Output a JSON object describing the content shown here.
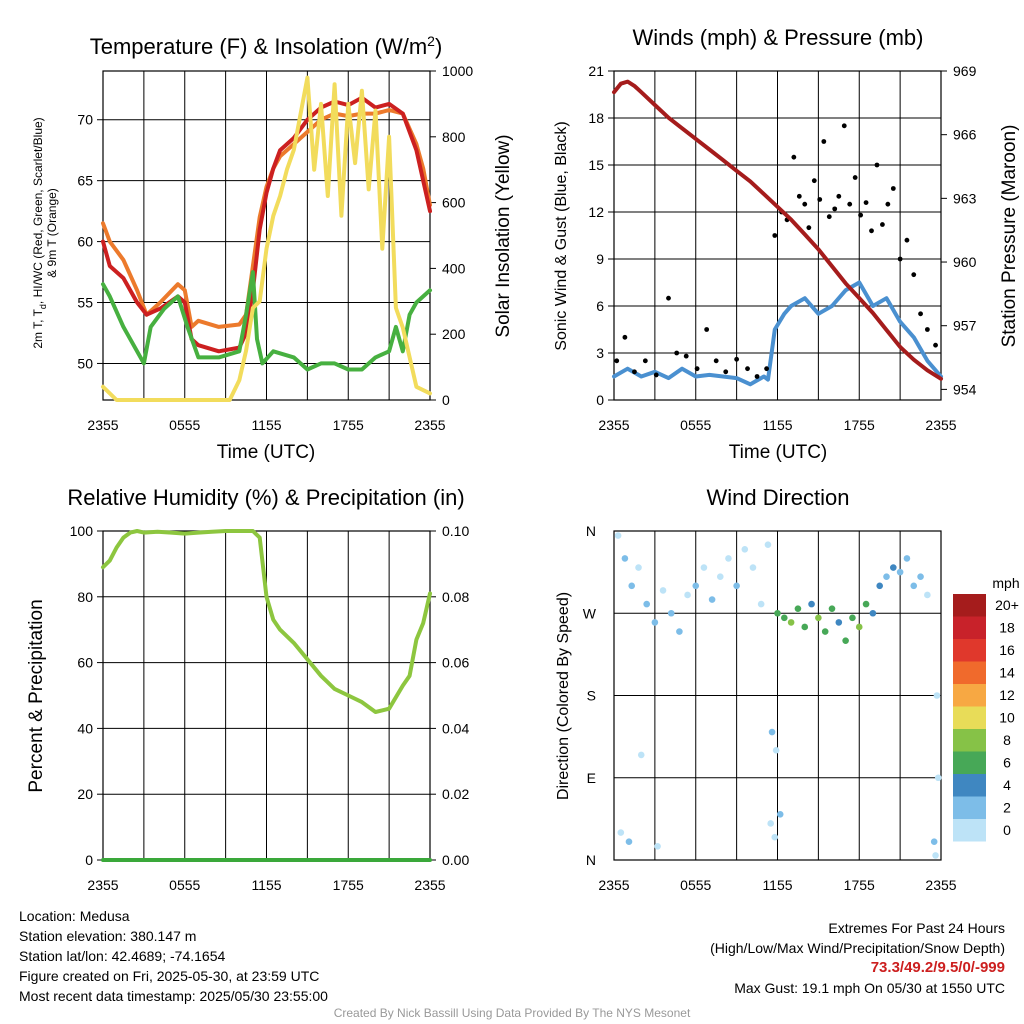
{
  "panels": {
    "temperature": {
      "title": "Temperature (F) & Insolation (W/m",
      "title_sup": "2",
      "title_close": ")",
      "ylabel_left_1": "2m T, T",
      "ylabel_left_sub": "d",
      "ylabel_left_2": ", HI/WC (Red, Green, Scarlet/Blue)",
      "ylabel_left_3": "& 9m T (Orange)",
      "ylabel_right": "Solar Insolation (Yellow)",
      "xlabel": "Time (UTC)"
    },
    "winds": {
      "title": "Winds (mph) & Pressure (mb)",
      "ylabel_left": "Sonic Wind & Gust (Blue, Black)",
      "ylabel_right": "Station Pressure (Maroon)",
      "xlabel": "Time (UTC)"
    },
    "humidity": {
      "title": "Relative Humidity (%) & Precipitation (in)",
      "ylabel_left": "Percent & Precipitation"
    },
    "direction": {
      "title": "Wind Direction",
      "ylabel_left": "Direction (Colored By Speed)",
      "legend_title": "mph",
      "legend_labels": [
        "20+",
        "18",
        "16",
        "14",
        "12",
        "10",
        "8",
        "6",
        "4",
        "2",
        "0"
      ],
      "legend_colors": [
        "#a51c1c",
        "#c8222a",
        "#e0382c",
        "#f06a2c",
        "#f7a843",
        "#e8dc58",
        "#86c247",
        "#47a857",
        "#3f87c1",
        "#7dbde8",
        "#bde3f7"
      ]
    }
  },
  "chart_data": [
    {
      "type": "line",
      "panel": "temperature",
      "x_ticks": [
        "2355",
        "0555",
        "1155",
        "1755",
        "2355"
      ],
      "x_range_hours": [
        0,
        24
      ],
      "ylim_left": [
        47,
        74
      ],
      "yticks_left": [
        50,
        55,
        60,
        65,
        70
      ],
      "ylim_right": [
        0,
        1000
      ],
      "yticks_right": [
        0,
        200,
        400,
        600,
        800,
        1000
      ],
      "series": [
        {
          "axis": "left",
          "color": "#ec7a2c",
          "x": [
            0,
            0.5,
            1.5,
            2.5,
            3.2,
            4.2,
            5.5,
            6,
            6.5,
            7,
            8.5,
            10,
            10.5,
            11,
            11.5,
            12,
            12.5,
            13,
            14,
            15,
            16,
            17,
            18,
            19,
            20,
            21,
            22,
            23,
            23.5,
            24
          ],
          "y": [
            61.5,
            60,
            58.5,
            56,
            54,
            55,
            56.5,
            56,
            53,
            53.5,
            53,
            53.2,
            54,
            58,
            62,
            64.5,
            66,
            67,
            68,
            69,
            70,
            70.5,
            70.3,
            70.5,
            70.5,
            70.8,
            70.5,
            68,
            66,
            63
          ]
        },
        {
          "axis": "left",
          "color": "#cc2020",
          "x": [
            0,
            0.5,
            1.5,
            2.5,
            3.2,
            4.2,
            5.5,
            6,
            6.5,
            7,
            8.5,
            10,
            10.5,
            11,
            11.5,
            12,
            12.5,
            13,
            14,
            15,
            16,
            17,
            18,
            19,
            20,
            21,
            22,
            23,
            23.5,
            24
          ],
          "y": [
            60,
            58,
            57,
            55,
            54,
            54.5,
            55.5,
            55,
            52,
            51.5,
            51,
            51.3,
            52.5,
            56,
            61,
            64,
            66,
            67.5,
            68.5,
            70,
            71,
            71.5,
            71.2,
            71.8,
            71,
            71.3,
            70.5,
            67.5,
            65,
            62.5
          ]
        },
        {
          "axis": "left",
          "color": "#47b040",
          "x": [
            0,
            0.5,
            1.5,
            2.5,
            3,
            3.5,
            4.5,
            5.5,
            6.2,
            7,
            8.5,
            10,
            10.5,
            11,
            11.3,
            11.7,
            12.5,
            14,
            15,
            16,
            17,
            18,
            19,
            20,
            21,
            21.5,
            22,
            22.5,
            23,
            24
          ],
          "y": [
            56.5,
            55.5,
            53,
            51,
            50,
            53,
            54.5,
            55.5,
            53,
            50.5,
            50.5,
            51,
            54,
            57.5,
            52,
            50,
            51,
            50.5,
            49.5,
            50,
            50,
            49.5,
            49.5,
            50.5,
            51,
            53,
            51,
            54,
            55,
            56
          ]
        },
        {
          "axis": "right",
          "color": "#f2dc5c",
          "x": [
            0,
            1,
            3,
            5,
            7,
            8.5,
            9.3,
            10,
            10.5,
            11,
            11.5,
            12,
            12.5,
            13,
            13.5,
            14,
            14.5,
            15,
            15.5,
            16,
            16.5,
            17,
            17.5,
            18,
            18.5,
            19,
            19.5,
            20,
            20.5,
            21,
            21.5,
            22,
            22.5,
            23,
            24
          ],
          "y": [
            40,
            0,
            0,
            0,
            0,
            0,
            0,
            60,
            150,
            280,
            300,
            460,
            560,
            620,
            700,
            760,
            870,
            980,
            700,
            900,
            620,
            960,
            560,
            900,
            720,
            940,
            640,
            880,
            460,
            800,
            280,
            220,
            130,
            40,
            20
          ]
        }
      ]
    },
    {
      "type": "line",
      "panel": "winds",
      "x_ticks": [
        "2355",
        "0555",
        "1155",
        "1755",
        "2355"
      ],
      "x_range_hours": [
        0,
        24
      ],
      "ylim_left": [
        0,
        21
      ],
      "yticks_left": [
        0,
        3,
        6,
        9,
        12,
        15,
        18,
        21
      ],
      "ylim_right": [
        953.5,
        969
      ],
      "yticks_right": [
        954,
        957,
        960,
        963,
        966,
        969
      ],
      "series": [
        {
          "axis": "left",
          "color": "#4a90d0",
          "x": [
            0,
            1,
            2,
            3,
            4,
            5,
            6,
            7,
            8,
            9,
            10,
            11,
            11.3,
            11.8,
            12.5,
            13,
            14,
            15,
            16,
            17,
            18,
            19,
            20,
            21,
            22,
            23,
            24
          ],
          "y": [
            1.5,
            2,
            1.5,
            1.8,
            1.4,
            2,
            1.5,
            1.6,
            1.5,
            1.4,
            1,
            1.5,
            1.3,
            4.5,
            5.5,
            6,
            6.5,
            5.5,
            6,
            7,
            7.5,
            6,
            6.5,
            5,
            4,
            2.5,
            1.5
          ]
        },
        {
          "axis": "left",
          "color": "#000000",
          "kind": "points",
          "x": [
            0.2,
            0.8,
            1.5,
            2.3,
            3.1,
            4,
            4.6,
            5.3,
            6.1,
            6.8,
            7.5,
            8.2,
            9,
            9.8,
            10.5,
            11.2,
            11.8,
            12.3,
            12.7,
            13.2,
            13.6,
            14,
            14.3,
            14.7,
            15.1,
            15.4,
            15.8,
            16.2,
            16.5,
            16.9,
            17.3,
            17.7,
            18.1,
            18.5,
            18.9,
            19.3,
            19.7,
            20.1,
            20.5,
            21,
            21.5,
            22,
            22.5,
            23,
            23.6
          ],
          "y": [
            2.5,
            4,
            1.8,
            2.5,
            1.6,
            6.5,
            3,
            2.8,
            2,
            4.5,
            2.5,
            1.8,
            2.6,
            2,
            1.5,
            2,
            10.5,
            12,
            11.5,
            15.5,
            13,
            12.5,
            11,
            14,
            12.8,
            16.5,
            11.7,
            12.2,
            13,
            17.5,
            12.5,
            14.2,
            11.8,
            12.6,
            10.8,
            15,
            11.2,
            12.5,
            13.5,
            9,
            10.2,
            8,
            5.5,
            4.5,
            3.5
          ]
        },
        {
          "axis": "right",
          "color": "#a51c1c",
          "x": [
            0,
            0.5,
            1,
            1.5,
            2,
            3,
            4,
            5,
            6,
            7,
            8,
            9,
            10,
            11,
            12,
            13,
            14,
            15,
            16,
            17,
            18,
            19,
            20,
            21,
            22,
            23,
            24
          ],
          "y": [
            968,
            968.4,
            968.5,
            968.3,
            968,
            967.4,
            966.8,
            966.3,
            965.8,
            965.3,
            964.8,
            964.3,
            963.8,
            963.2,
            962.6,
            962,
            961.3,
            960.6,
            959.8,
            959,
            958.3,
            957.6,
            956.8,
            956,
            955.4,
            954.9,
            954.5
          ]
        }
      ]
    },
    {
      "type": "line",
      "panel": "humidity",
      "x_ticks": [
        "2355",
        "0555",
        "1155",
        "1755",
        "2355"
      ],
      "x_range_hours": [
        0,
        24
      ],
      "ylim_left": [
        0,
        100
      ],
      "yticks_left": [
        0,
        20,
        40,
        60,
        80,
        100
      ],
      "ylim_right": [
        0,
        0.1
      ],
      "yticks_right": [
        "0.00",
        "0.02",
        "0.04",
        "0.06",
        "0.08",
        "0.10"
      ],
      "series": [
        {
          "axis": "left",
          "color": "#8dc63f",
          "x": [
            0,
            0.5,
            1,
            1.5,
            2,
            2.5,
            3,
            4,
            5,
            6,
            7,
            8,
            9,
            10,
            11,
            11.5,
            12,
            12.5,
            13,
            14,
            15,
            16,
            17,
            18,
            19,
            20,
            21,
            22,
            22.5,
            23,
            23.5,
            24
          ],
          "y": [
            89,
            91,
            95,
            98,
            99.5,
            100,
            99.5,
            99.8,
            99.5,
            99.2,
            99.5,
            99.8,
            100,
            100,
            100,
            98,
            80,
            73,
            70,
            66,
            61,
            56,
            52,
            50,
            48,
            45,
            46,
            53,
            56,
            67,
            72,
            81
          ]
        },
        {
          "axis": "right",
          "color": "#3aa83a",
          "x": [
            0,
            24
          ],
          "y": [
            0,
            0
          ]
        }
      ]
    },
    {
      "type": "scatter",
      "panel": "direction",
      "x_ticks": [
        "2355",
        "0555",
        "1155",
        "1755",
        "2355"
      ],
      "x_range_hours": [
        0,
        24
      ],
      "ylim_deg": [
        0,
        360
      ],
      "ytick_labels": [
        "N",
        "E",
        "S",
        "W",
        "N"
      ],
      "points": [
        {
          "x": 0.3,
          "deg": 355,
          "mph": 1
        },
        {
          "x": 0.8,
          "deg": 330,
          "mph": 2
        },
        {
          "x": 1.3,
          "deg": 300,
          "mph": 2
        },
        {
          "x": 1.8,
          "deg": 320,
          "mph": 1
        },
        {
          "x": 2.4,
          "deg": 280,
          "mph": 3
        },
        {
          "x": 3,
          "deg": 260,
          "mph": 2
        },
        {
          "x": 3.6,
          "deg": 295,
          "mph": 1
        },
        {
          "x": 4.2,
          "deg": 270,
          "mph": 2
        },
        {
          "x": 4.8,
          "deg": 250,
          "mph": 3
        },
        {
          "x": 5.4,
          "deg": 290,
          "mph": 1
        },
        {
          "x": 6,
          "deg": 300,
          "mph": 2
        },
        {
          "x": 6.6,
          "deg": 320,
          "mph": 1
        },
        {
          "x": 7.2,
          "deg": 285,
          "mph": 2
        },
        {
          "x": 7.8,
          "deg": 310,
          "mph": 1
        },
        {
          "x": 8.4,
          "deg": 330,
          "mph": 1
        },
        {
          "x": 9,
          "deg": 300,
          "mph": 2
        },
        {
          "x": 9.6,
          "deg": 340,
          "mph": 1
        },
        {
          "x": 10.2,
          "deg": 320,
          "mph": 1
        },
        {
          "x": 10.8,
          "deg": 280,
          "mph": 1
        },
        {
          "x": 11.3,
          "deg": 345,
          "mph": 1
        },
        {
          "x": 12,
          "deg": 270,
          "mph": 6
        },
        {
          "x": 12.5,
          "deg": 265,
          "mph": 7
        },
        {
          "x": 13,
          "deg": 260,
          "mph": 8
        },
        {
          "x": 13.5,
          "deg": 275,
          "mph": 6
        },
        {
          "x": 14,
          "deg": 255,
          "mph": 7
        },
        {
          "x": 14.5,
          "deg": 280,
          "mph": 5
        },
        {
          "x": 15,
          "deg": 265,
          "mph": 8
        },
        {
          "x": 15.5,
          "deg": 250,
          "mph": 6
        },
        {
          "x": 16,
          "deg": 275,
          "mph": 7
        },
        {
          "x": 16.5,
          "deg": 260,
          "mph": 5
        },
        {
          "x": 17,
          "deg": 240,
          "mph": 6
        },
        {
          "x": 17.5,
          "deg": 265,
          "mph": 7
        },
        {
          "x": 18,
          "deg": 255,
          "mph": 8
        },
        {
          "x": 18.5,
          "deg": 280,
          "mph": 6
        },
        {
          "x": 19,
          "deg": 270,
          "mph": 5
        },
        {
          "x": 19.5,
          "deg": 300,
          "mph": 4
        },
        {
          "x": 20,
          "deg": 310,
          "mph": 3
        },
        {
          "x": 20.5,
          "deg": 320,
          "mph": 4
        },
        {
          "x": 21,
          "deg": 315,
          "mph": 3
        },
        {
          "x": 21.5,
          "deg": 330,
          "mph": 2
        },
        {
          "x": 22,
          "deg": 300,
          "mph": 2
        },
        {
          "x": 22.5,
          "deg": 310,
          "mph": 2
        },
        {
          "x": 23,
          "deg": 290,
          "mph": 1
        },
        {
          "x": 23.6,
          "deg": 5,
          "mph": 1
        },
        {
          "x": 0.5,
          "deg": 30,
          "mph": 1
        },
        {
          "x": 1.1,
          "deg": 20,
          "mph": 2
        },
        {
          "x": 3.2,
          "deg": 15,
          "mph": 1
        },
        {
          "x": 11.5,
          "deg": 40,
          "mph": 1
        },
        {
          "x": 11.8,
          "deg": 25,
          "mph": 1
        },
        {
          "x": 12.2,
          "deg": 50,
          "mph": 2
        },
        {
          "x": 11.6,
          "deg": 140,
          "mph": 2
        },
        {
          "x": 11.9,
          "deg": 120,
          "mph": 1
        },
        {
          "x": 2,
          "deg": 115,
          "mph": 1
        },
        {
          "x": 23.7,
          "deg": 180,
          "mph": 1
        },
        {
          "x": 23.8,
          "deg": 90,
          "mph": 1
        },
        {
          "x": 23.5,
          "deg": 20,
          "mph": 2
        }
      ]
    }
  ],
  "info": {
    "location": "Location: Medusa",
    "elevation": "Station elevation: 380.147 m",
    "latlon": "Station lat/lon: 42.4689; -74.1654",
    "created": "Figure created on Fri, 2025-05-30, at 23:59 UTC",
    "recent": "Most recent data timestamp: 2025/05/30 23:55:00",
    "extremes_title": "Extremes For Past 24 Hours",
    "extremes_sub": "(High/Low/Max Wind/Precipitation/Snow Depth)",
    "extremes_values": "73.3/49.2/9.5/0/-999",
    "max_gust": "Max Gust: 19.1 mph On 05/30 at 1550 UTC",
    "credit": "Created By Nick Bassill Using Data Provided By The NYS Mesonet"
  },
  "colors": {
    "accent_red": "#cc1f1f",
    "credit_gray": "#999999"
  }
}
